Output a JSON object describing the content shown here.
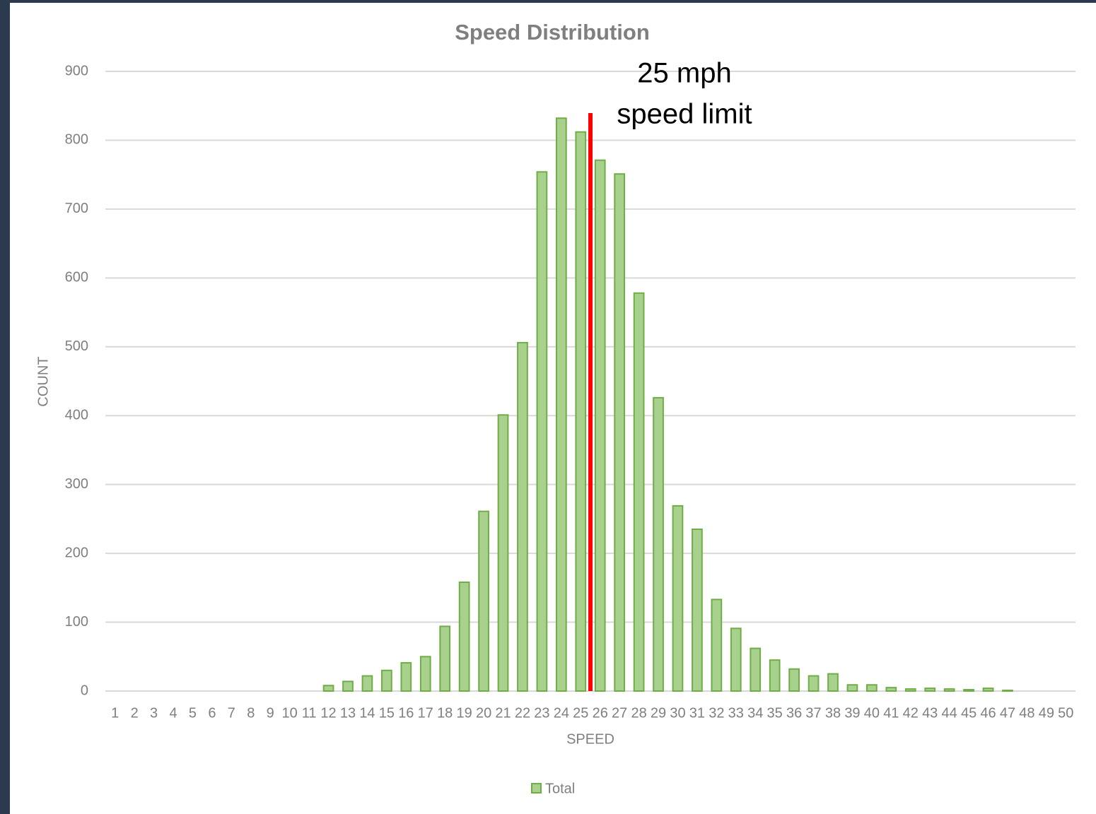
{
  "chart_data": {
    "type": "bar",
    "title": "Speed Distribution",
    "x_label": "SPEED",
    "y_label": "COUNT",
    "annotation": [
      "25 mph",
      "speed limit"
    ],
    "categories": [
      "1",
      "2",
      "3",
      "4",
      "5",
      "6",
      "7",
      "8",
      "9",
      "10",
      "11",
      "12",
      "13",
      "14",
      "15",
      "16",
      "17",
      "18",
      "19",
      "20",
      "21",
      "22",
      "23",
      "24",
      "25",
      "26",
      "27",
      "28",
      "29",
      "30",
      "31",
      "32",
      "33",
      "34",
      "35",
      "36",
      "37",
      "38",
      "39",
      "40",
      "41",
      "42",
      "43",
      "44",
      "45",
      "46",
      "47",
      "48",
      "49",
      "50"
    ],
    "series": [
      {
        "name": "Total",
        "color": "#a9d18e",
        "edge_color": "#70ad47",
        "values": [
          0,
          0,
          0,
          0,
          0,
          0,
          0,
          0,
          0,
          0,
          0,
          8,
          14,
          22,
          30,
          41,
          50,
          94,
          158,
          261,
          401,
          506,
          754,
          832,
          812,
          771,
          751,
          578,
          426,
          269,
          235,
          133,
          91,
          62,
          45,
          32,
          22,
          25,
          9,
          9,
          5,
          3,
          4,
          3,
          2,
          4,
          1,
          0,
          0,
          0
        ]
      }
    ],
    "ylim": [
      0,
      900
    ],
    "yticks": [
      0,
      100,
      200,
      300,
      400,
      500,
      600,
      700,
      800,
      900
    ],
    "grid": true,
    "legend": "bottom"
  }
}
